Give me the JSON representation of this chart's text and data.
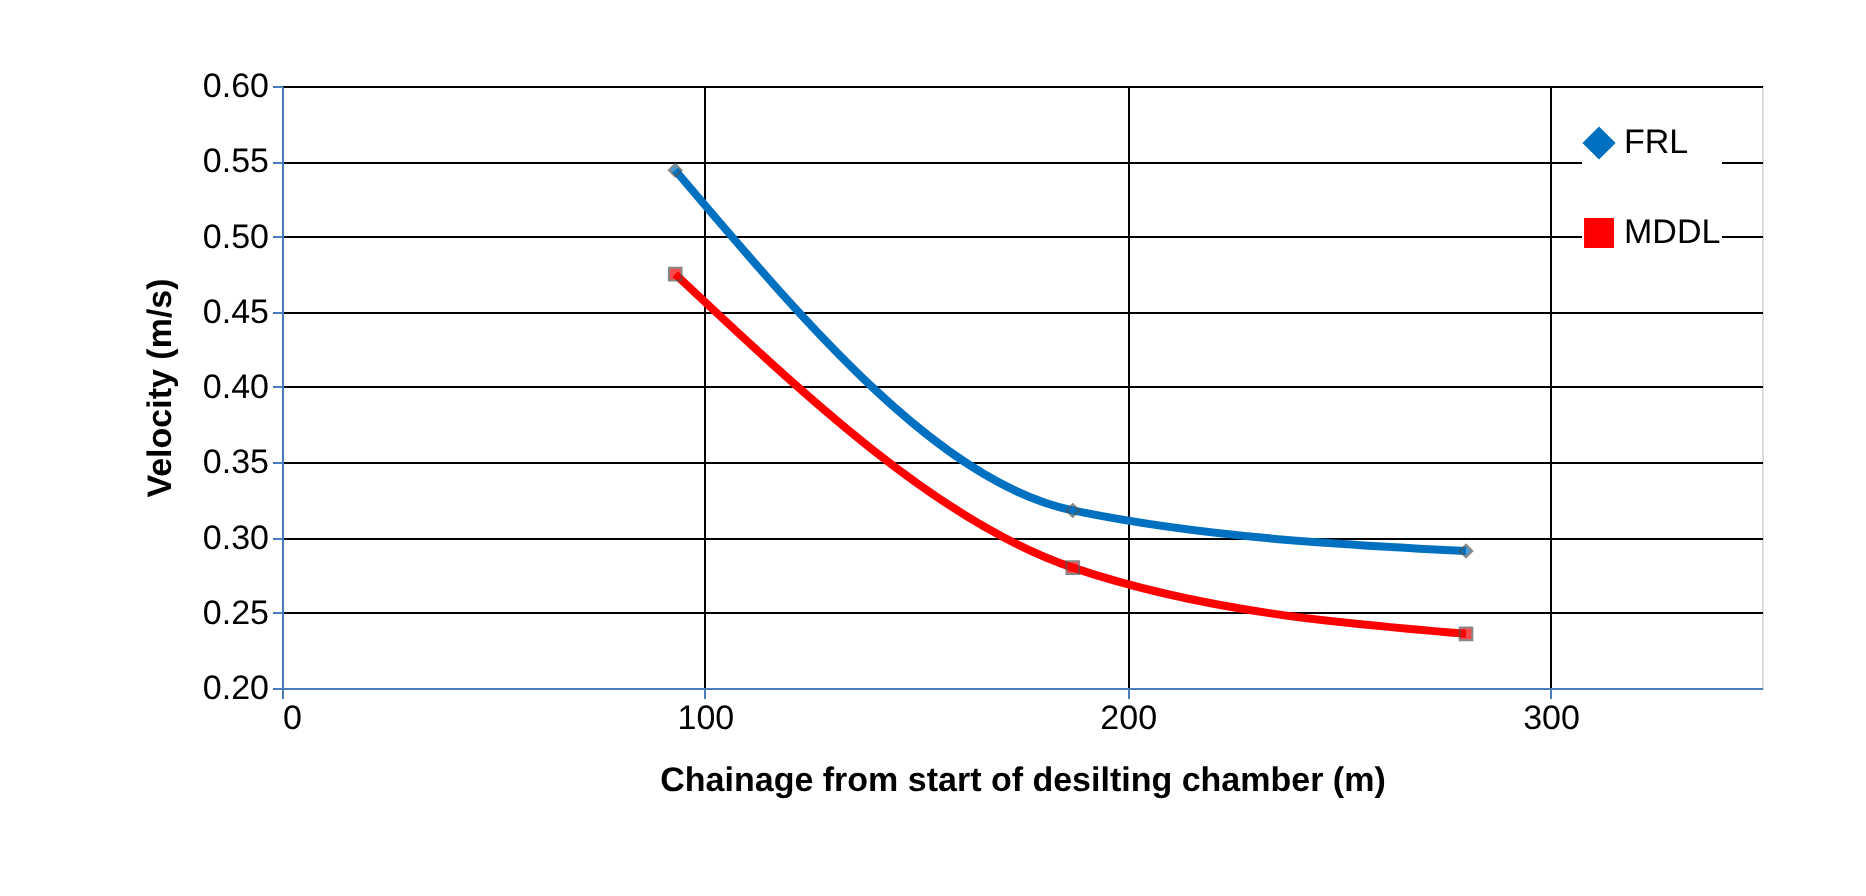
{
  "chart_data": {
    "type": "line",
    "xlabel": "Chainage from start of desilting chamber (m)",
    "ylabel": "Velocity (m/s)",
    "x": [
      93,
      187,
      280
    ],
    "series": [
      {
        "name": "FRL",
        "color": "#0070c0",
        "values": [
          0.544,
          0.318,
          0.291
        ],
        "marker": "diamond"
      },
      {
        "name": "MDDL",
        "color": "#ff0000",
        "values": [
          0.475,
          0.28,
          0.236
        ],
        "marker": "square"
      }
    ],
    "xlim": [
      0,
      350
    ],
    "xticks": [
      0,
      100,
      200,
      300
    ],
    "ylim": [
      0.2,
      0.6
    ],
    "yticks": [
      {
        "value": 0.2,
        "label": "0.20"
      },
      {
        "value": 0.25,
        "label": "0.25"
      },
      {
        "value": 0.3,
        "label": "0.30"
      },
      {
        "value": 0.35,
        "label": "0.35"
      },
      {
        "value": 0.4,
        "label": "0.40"
      },
      {
        "value": 0.45,
        "label": "0.45"
      },
      {
        "value": 0.5,
        "label": "0.50"
      },
      {
        "value": 0.55,
        "label": "0.55"
      },
      {
        "value": 0.6,
        "label": "0.60"
      }
    ],
    "grid": true,
    "legend": "top right",
    "line_style": "solid"
  }
}
